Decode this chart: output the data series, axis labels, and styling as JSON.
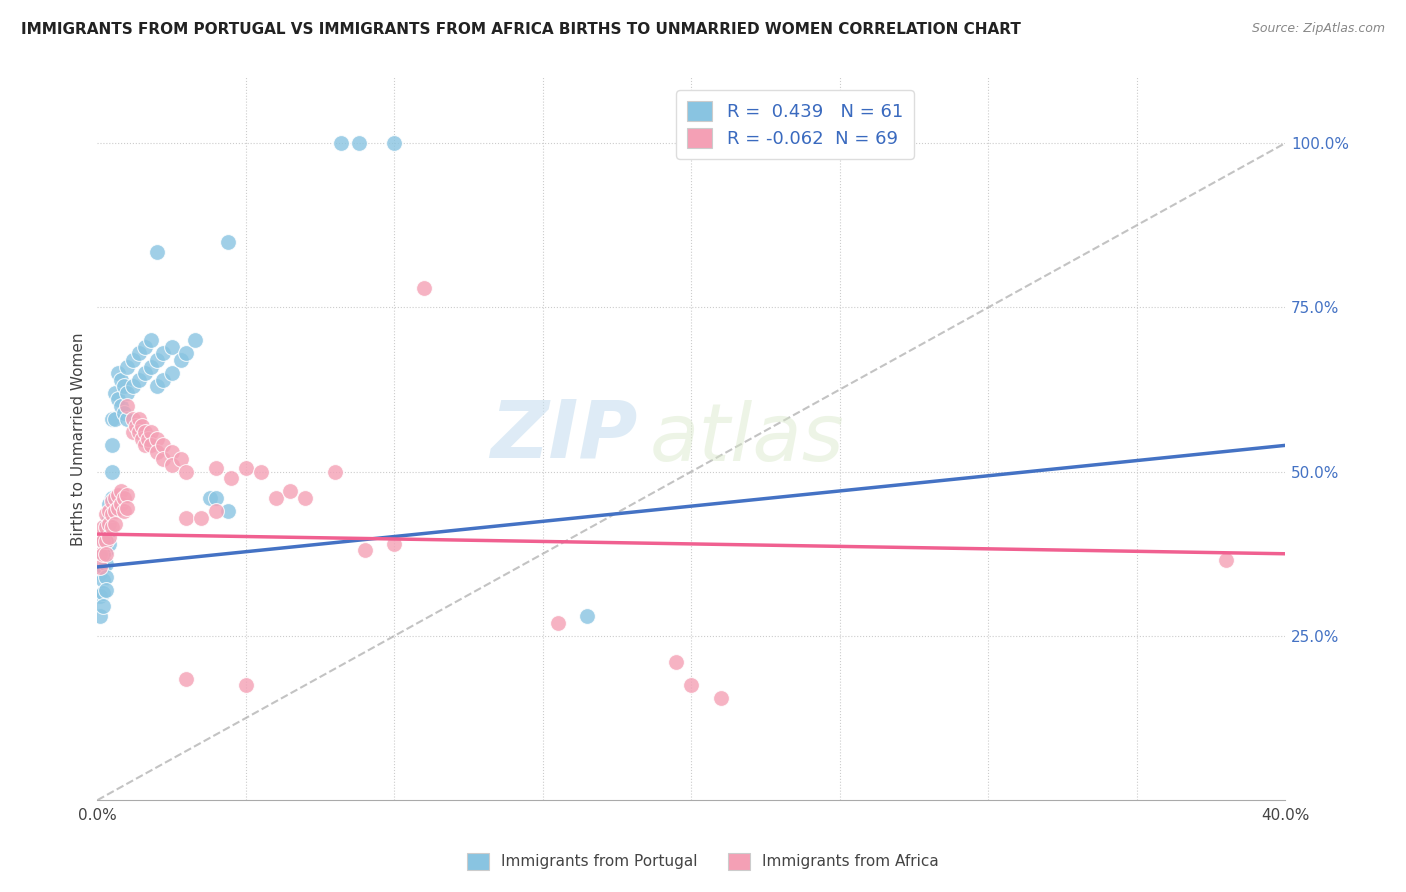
{
  "title": "IMMIGRANTS FROM PORTUGAL VS IMMIGRANTS FROM AFRICA BIRTHS TO UNMARRIED WOMEN CORRELATION CHART",
  "source": "Source: ZipAtlas.com",
  "ylabel": "Births to Unmarried Women",
  "blue_R": 0.439,
  "blue_N": 61,
  "pink_R": -0.062,
  "pink_N": 69,
  "blue_color": "#89c4e1",
  "pink_color": "#f4a0b5",
  "blue_line_color": "#4472c4",
  "pink_line_color": "#f06090",
  "watermark_zip": "ZIP",
  "watermark_atlas": "atlas",
  "legend_label_blue": "Immigrants from Portugal",
  "legend_label_pink": "Immigrants from Africa",
  "xlim": [
    0.0,
    0.4
  ],
  "ylim": [
    0.0,
    1.1
  ],
  "ytick_vals": [
    0.25,
    0.5,
    0.75,
    1.0
  ],
  "ytick_labels": [
    "25.0%",
    "50.0%",
    "75.0%",
    "100.0%"
  ],
  "xtick_vals": [
    0.0,
    0.4
  ],
  "xtick_labels": [
    "0.0%",
    "40.0%"
  ],
  "blue_line_x": [
    0.0,
    0.4
  ],
  "blue_line_y": [
    0.355,
    0.54
  ],
  "pink_line_x": [
    0.0,
    0.4
  ],
  "pink_line_y": [
    0.405,
    0.375
  ],
  "diag_line_x": [
    0.0,
    0.4
  ],
  "diag_line_y": [
    0.0,
    1.0
  ],
  "blue_scatter": [
    [
      0.001,
      0.365
    ],
    [
      0.001,
      0.345
    ],
    [
      0.001,
      0.31
    ],
    [
      0.001,
      0.28
    ],
    [
      0.002,
      0.395
    ],
    [
      0.002,
      0.375
    ],
    [
      0.002,
      0.355
    ],
    [
      0.002,
      0.335
    ],
    [
      0.002,
      0.315
    ],
    [
      0.002,
      0.295
    ],
    [
      0.003,
      0.42
    ],
    [
      0.003,
      0.4
    ],
    [
      0.003,
      0.38
    ],
    [
      0.003,
      0.36
    ],
    [
      0.003,
      0.34
    ],
    [
      0.003,
      0.32
    ],
    [
      0.004,
      0.45
    ],
    [
      0.004,
      0.43
    ],
    [
      0.004,
      0.41
    ],
    [
      0.004,
      0.39
    ],
    [
      0.005,
      0.58
    ],
    [
      0.005,
      0.54
    ],
    [
      0.005,
      0.5
    ],
    [
      0.005,
      0.46
    ],
    [
      0.006,
      0.62
    ],
    [
      0.006,
      0.58
    ],
    [
      0.007,
      0.65
    ],
    [
      0.007,
      0.61
    ],
    [
      0.008,
      0.64
    ],
    [
      0.008,
      0.6
    ],
    [
      0.009,
      0.63
    ],
    [
      0.009,
      0.59
    ],
    [
      0.01,
      0.66
    ],
    [
      0.01,
      0.62
    ],
    [
      0.01,
      0.58
    ],
    [
      0.012,
      0.67
    ],
    [
      0.012,
      0.63
    ],
    [
      0.014,
      0.68
    ],
    [
      0.014,
      0.64
    ],
    [
      0.016,
      0.69
    ],
    [
      0.016,
      0.65
    ],
    [
      0.018,
      0.7
    ],
    [
      0.018,
      0.66
    ],
    [
      0.02,
      0.67
    ],
    [
      0.02,
      0.63
    ],
    [
      0.022,
      0.68
    ],
    [
      0.022,
      0.64
    ],
    [
      0.025,
      0.69
    ],
    [
      0.025,
      0.65
    ],
    [
      0.028,
      0.67
    ],
    [
      0.03,
      0.68
    ],
    [
      0.033,
      0.7
    ],
    [
      0.038,
      0.46
    ],
    [
      0.04,
      0.46
    ],
    [
      0.044,
      0.85
    ],
    [
      0.044,
      0.44
    ],
    [
      0.082,
      1.0
    ],
    [
      0.088,
      1.0
    ],
    [
      0.1,
      1.0
    ],
    [
      0.165,
      0.28
    ],
    [
      0.02,
      0.835
    ]
  ],
  "pink_scatter": [
    [
      0.001,
      0.4
    ],
    [
      0.001,
      0.375
    ],
    [
      0.001,
      0.355
    ],
    [
      0.002,
      0.415
    ],
    [
      0.002,
      0.395
    ],
    [
      0.002,
      0.375
    ],
    [
      0.003,
      0.435
    ],
    [
      0.003,
      0.415
    ],
    [
      0.003,
      0.395
    ],
    [
      0.003,
      0.375
    ],
    [
      0.004,
      0.44
    ],
    [
      0.004,
      0.42
    ],
    [
      0.004,
      0.4
    ],
    [
      0.005,
      0.455
    ],
    [
      0.005,
      0.435
    ],
    [
      0.005,
      0.415
    ],
    [
      0.006,
      0.46
    ],
    [
      0.006,
      0.44
    ],
    [
      0.006,
      0.42
    ],
    [
      0.007,
      0.465
    ],
    [
      0.007,
      0.445
    ],
    [
      0.008,
      0.47
    ],
    [
      0.008,
      0.45
    ],
    [
      0.009,
      0.46
    ],
    [
      0.009,
      0.44
    ],
    [
      0.01,
      0.465
    ],
    [
      0.01,
      0.445
    ],
    [
      0.01,
      0.6
    ],
    [
      0.012,
      0.58
    ],
    [
      0.012,
      0.56
    ],
    [
      0.013,
      0.57
    ],
    [
      0.014,
      0.58
    ],
    [
      0.014,
      0.56
    ],
    [
      0.015,
      0.57
    ],
    [
      0.015,
      0.55
    ],
    [
      0.016,
      0.56
    ],
    [
      0.016,
      0.54
    ],
    [
      0.017,
      0.55
    ],
    [
      0.018,
      0.56
    ],
    [
      0.018,
      0.54
    ],
    [
      0.02,
      0.55
    ],
    [
      0.02,
      0.53
    ],
    [
      0.022,
      0.54
    ],
    [
      0.022,
      0.52
    ],
    [
      0.025,
      0.53
    ],
    [
      0.025,
      0.51
    ],
    [
      0.028,
      0.52
    ],
    [
      0.03,
      0.5
    ],
    [
      0.03,
      0.43
    ],
    [
      0.035,
      0.43
    ],
    [
      0.04,
      0.505
    ],
    [
      0.04,
      0.44
    ],
    [
      0.045,
      0.49
    ],
    [
      0.05,
      0.505
    ],
    [
      0.055,
      0.5
    ],
    [
      0.06,
      0.46
    ],
    [
      0.065,
      0.47
    ],
    [
      0.07,
      0.46
    ],
    [
      0.08,
      0.5
    ],
    [
      0.09,
      0.38
    ],
    [
      0.1,
      0.39
    ],
    [
      0.11,
      0.78
    ],
    [
      0.155,
      0.27
    ],
    [
      0.195,
      0.21
    ],
    [
      0.2,
      0.175
    ],
    [
      0.21,
      0.155
    ],
    [
      0.38,
      0.365
    ],
    [
      0.03,
      0.185
    ],
    [
      0.05,
      0.175
    ]
  ]
}
